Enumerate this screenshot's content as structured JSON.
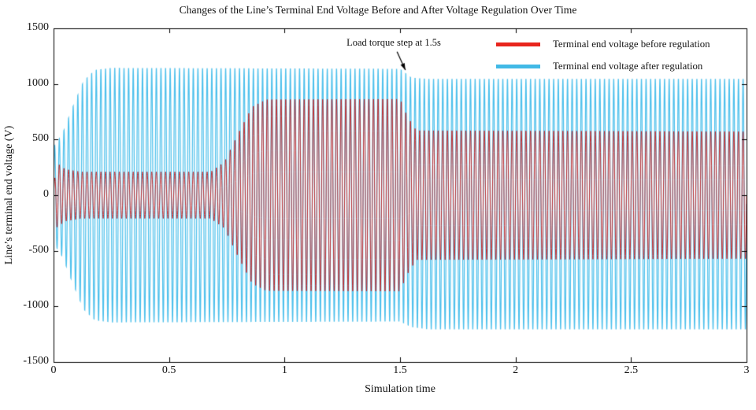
{
  "figure": {
    "background": "#ffffff"
  },
  "chart_data": {
    "type": "line",
    "title": "Changes of the Line’s Terminal End Voltage Before and After Voltage Regulation Over Time",
    "xlabel": "Simulation time",
    "ylabel": "Line’s terminal end voltage (V)",
    "xlim": [
      0,
      3
    ],
    "ylim": [
      -1500,
      1500
    ],
    "xtick_values": [
      0,
      0.5,
      1,
      1.5,
      2,
      2.5,
      3
    ],
    "xtick_labels": [
      "0",
      "0.5",
      "1",
      "1.5",
      "2",
      "2.5",
      "3"
    ],
    "ytick_values": [
      -1500,
      -1000,
      -500,
      0,
      500,
      1000,
      1500
    ],
    "ytick_labels": [
      "-1500",
      "-1000",
      "-500",
      "0",
      "500",
      "1000",
      "1500"
    ],
    "grid": false,
    "legend_position": "top-right-inside",
    "legend": [
      {
        "label": "Terminal end voltage before regulation",
        "color": "#e8251d"
      },
      {
        "label": "Terminal end voltage after regulation",
        "color": "#41b9e6"
      }
    ],
    "annotation": {
      "text": "Load torque step at 1.5s",
      "arrow_from": [
        1.487,
        1290
      ],
      "arrow_to": [
        1.523,
        1125
      ]
    },
    "frequency_hz": 50,
    "series_note": "envelope points are [time_s, amplitude_V, dc_offset_V]; waveform is offset + amplitude * sin(2*pi*f*t)",
    "series": [
      {
        "name": "Terminal end voltage before regulation",
        "color": "#c81e1e",
        "alpha": 0.9,
        "line_width": 1,
        "z_order": 2,
        "envelope": [
          [
            0,
            80,
            0
          ],
          [
            0.015,
            290,
            0
          ],
          [
            0.05,
            235,
            0
          ],
          [
            0.12,
            210,
            0
          ],
          [
            0.68,
            210,
            0
          ],
          [
            0.74,
            300,
            0
          ],
          [
            0.8,
            560,
            0
          ],
          [
            0.86,
            800,
            0
          ],
          [
            0.92,
            865,
            0
          ],
          [
            1.5,
            870,
            0
          ],
          [
            1.53,
            720,
            0
          ],
          [
            1.57,
            585,
            0
          ],
          [
            3,
            575,
            0
          ]
        ]
      },
      {
        "name": "Terminal end voltage after regulation",
        "color": "#4cc0ec",
        "alpha": 1,
        "line_width": 1.2,
        "z_order": 1,
        "envelope": [
          [
            0,
            430,
            0
          ],
          [
            0.04,
            560,
            0
          ],
          [
            0.08,
            780,
            0
          ],
          [
            0.13,
            1030,
            0
          ],
          [
            0.18,
            1130,
            0
          ],
          [
            0.25,
            1148,
            0
          ],
          [
            1.5,
            1140,
            0
          ],
          [
            1.55,
            1125,
            -65
          ],
          [
            1.62,
            1130,
            -80
          ],
          [
            3,
            1130,
            -80
          ]
        ]
      }
    ]
  }
}
